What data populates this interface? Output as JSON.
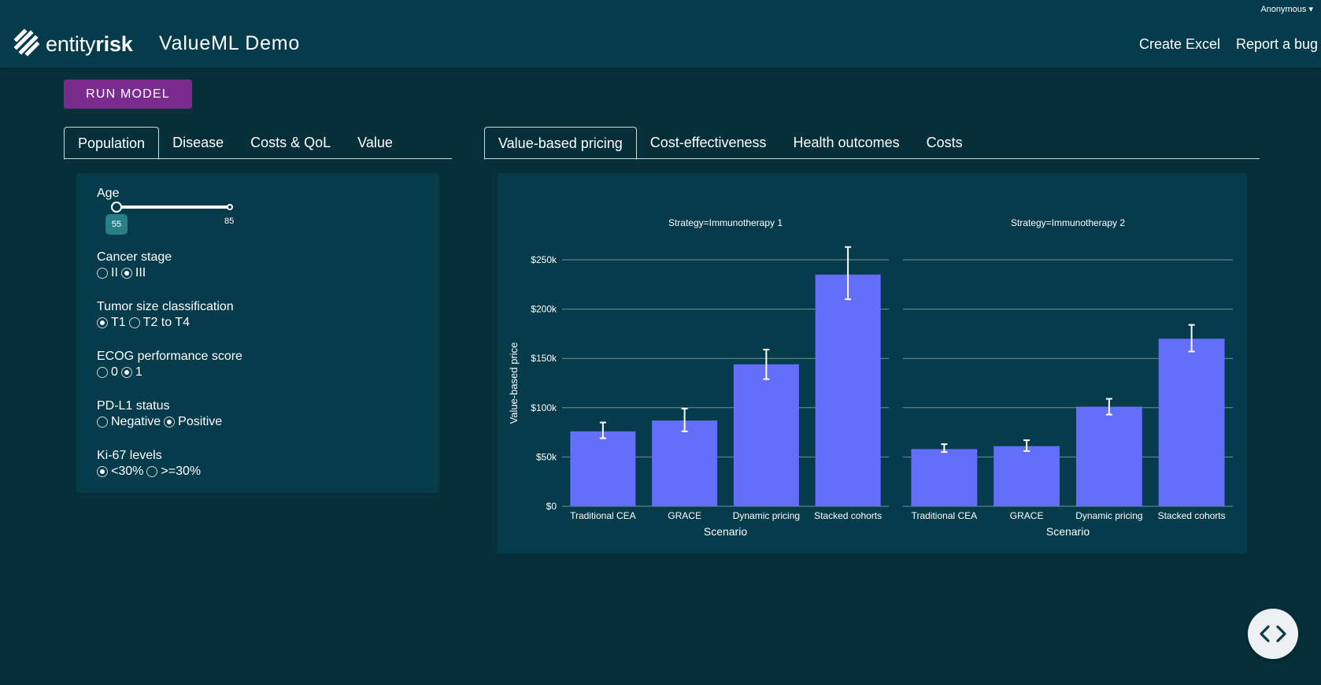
{
  "header": {
    "user": "Anonymous ▾",
    "logo_light": "entity",
    "logo_bold": "risk",
    "app_title": "ValueML Demo",
    "nav": [
      "Create Excel",
      "Report a bug"
    ]
  },
  "run_button": "RUN MODEL",
  "left_tabs": [
    "Population",
    "Disease",
    "Costs & QoL",
    "Value"
  ],
  "right_tabs": [
    "Value-based pricing",
    "Cost-effectiveness",
    "Health outcomes",
    "Costs"
  ],
  "controls": {
    "age": {
      "label": "Age",
      "value": "55",
      "max": "85"
    },
    "cancer_stage": {
      "label": "Cancer stage",
      "options": [
        "II",
        "III"
      ],
      "selected": 1
    },
    "tumor_size": {
      "label": "Tumor size classification",
      "options": [
        "T1",
        "T2 to T4"
      ],
      "selected": 0
    },
    "ecog": {
      "label": "ECOG performance score",
      "options": [
        "0",
        "1"
      ],
      "selected": 1
    },
    "pdl1": {
      "label": "PD-L1 status",
      "options": [
        "Negative",
        "Positive"
      ],
      "selected": 1
    },
    "ki67": {
      "label": "Ki-67 levels",
      "options": [
        "<30%",
        ">=30%"
      ],
      "selected": 0
    }
  },
  "colors": {
    "bar": "#636efa",
    "panel": "#053b4a",
    "background": "#062f39",
    "run_button": "#7a2c8e"
  },
  "fab_icon": "code-icon",
  "chart_data": {
    "type": "bar",
    "ylabel": "Value-based price",
    "ylim": [
      0,
      250000
    ],
    "yticks": [
      0,
      50000,
      100000,
      150000,
      200000,
      250000
    ],
    "ytick_labels": [
      "$0",
      "$50k",
      "$100k",
      "$150k",
      "$200k",
      "$250k"
    ],
    "grid": true,
    "facets": [
      {
        "title": "Strategy=Immunotherapy 1",
        "xlabel": "Scenario",
        "categories": [
          "Traditional CEA",
          "GRACE",
          "Dynamic pricing",
          "Stacked cohorts"
        ],
        "values": [
          76000,
          87000,
          144000,
          235000
        ],
        "error_low": [
          69000,
          76000,
          129000,
          210000
        ],
        "error_high": [
          85000,
          99000,
          159000,
          263000
        ]
      },
      {
        "title": "Strategy=Immunotherapy 2",
        "xlabel": "Scenario",
        "categories": [
          "Traditional CEA",
          "GRACE",
          "Dynamic pricing",
          "Stacked cohorts"
        ],
        "values": [
          58000,
          61000,
          101000,
          170000
        ],
        "error_low": [
          55000,
          56000,
          93000,
          157000
        ],
        "error_high": [
          63000,
          67000,
          109000,
          184000
        ]
      }
    ]
  }
}
